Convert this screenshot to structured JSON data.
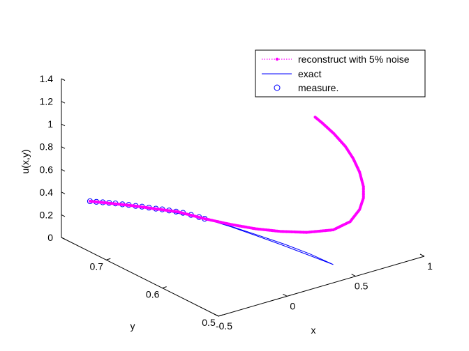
{
  "chart_data": {
    "type": "line",
    "projection": "3d",
    "xlabel": "x",
    "ylabel": "y",
    "zlabel": "u(x,y)",
    "xlim": [
      -0.5,
      1
    ],
    "ylim": [
      0.5,
      0.78
    ],
    "zlim": [
      0,
      1.4
    ],
    "x_ticks": [
      "-0.5",
      "0",
      "0.5",
      "1"
    ],
    "y_ticks": [
      "0.5",
      "0.6",
      "0.7"
    ],
    "z_ticks": [
      "0",
      "0.2",
      "0.4",
      "0.6",
      "0.8",
      "1",
      "1.2",
      "1.4"
    ],
    "grid": false,
    "legend_position": "top-right",
    "series": [
      {
        "name": "reconstruct with 5% noise",
        "style": "dotted-with-point-markers",
        "color": "#ff00ff",
        "points": [
          {
            "x": -0.5,
            "y": 0.729,
            "z": 0.446
          },
          {
            "x": -0.4,
            "y": 0.714,
            "z": 0.428
          },
          {
            "x": -0.3,
            "y": 0.7,
            "z": 0.407
          },
          {
            "x": -0.2,
            "y": 0.685,
            "z": 0.382
          },
          {
            "x": -0.1,
            "y": 0.67,
            "z": 0.358
          },
          {
            "x": 0.0,
            "y": 0.647,
            "z": 0.319
          },
          {
            "x": 0.1,
            "y": 0.625,
            "z": 0.288
          },
          {
            "x": 0.2,
            "y": 0.605,
            "z": 0.264
          },
          {
            "x": 0.3,
            "y": 0.585,
            "z": 0.255
          },
          {
            "x": 0.4,
            "y": 0.563,
            "z": 0.266
          },
          {
            "x": 0.5,
            "y": 0.54,
            "z": 0.31
          },
          {
            "x": 0.57,
            "y": 0.527,
            "z": 0.39
          },
          {
            "x": 0.61,
            "y": 0.52,
            "z": 0.5
          },
          {
            "x": 0.63,
            "y": 0.518,
            "z": 0.6
          },
          {
            "x": 0.63,
            "y": 0.518,
            "z": 0.7
          },
          {
            "x": 0.61,
            "y": 0.52,
            "z": 0.83
          },
          {
            "x": 0.58,
            "y": 0.524,
            "z": 0.95
          },
          {
            "x": 0.54,
            "y": 0.528,
            "z": 1.06
          },
          {
            "x": 0.48,
            "y": 0.534,
            "z": 1.18
          },
          {
            "x": 0.42,
            "y": 0.54,
            "z": 1.28
          },
          {
            "x": 0.38,
            "y": 0.545,
            "z": 1.342
          }
        ]
      },
      {
        "name": "exact",
        "style": "solid",
        "color": "#0000ff",
        "points": [
          {
            "x": -0.5,
            "y": 0.729,
            "z": 0.446
          },
          {
            "x": -0.2,
            "y": 0.685,
            "z": 0.382
          },
          {
            "x": 0.0,
            "y": 0.647,
            "z": 0.319
          },
          {
            "x": 0.1,
            "y": 0.625,
            "z": 0.268
          },
          {
            "x": 0.2,
            "y": 0.605,
            "z": 0.205
          },
          {
            "x": 0.3,
            "y": 0.585,
            "z": 0.14
          },
          {
            "x": 0.4,
            "y": 0.563,
            "z": 0.072
          },
          {
            "x": 0.5,
            "y": 0.54,
            "z": 0.004
          },
          {
            "x": 0.4,
            "y": 0.558,
            "z": 0.09
          },
          {
            "x": 0.3,
            "y": 0.578,
            "z": 0.16
          },
          {
            "x": 0.2,
            "y": 0.598,
            "z": 0.22
          },
          {
            "x": 0.1,
            "y": 0.622,
            "z": 0.275
          },
          {
            "x": 0.0,
            "y": 0.647,
            "z": 0.319
          }
        ]
      },
      {
        "name": "measure.",
        "style": "circle-markers",
        "color": "#0000ff",
        "points": [
          {
            "x": -0.5,
            "y": 0.729,
            "z": 0.446
          },
          {
            "x": -0.47,
            "y": 0.725,
            "z": 0.44
          },
          {
            "x": -0.44,
            "y": 0.721,
            "z": 0.435
          },
          {
            "x": -0.41,
            "y": 0.717,
            "z": 0.43
          },
          {
            "x": -0.38,
            "y": 0.713,
            "z": 0.424
          },
          {
            "x": -0.35,
            "y": 0.708,
            "z": 0.418
          },
          {
            "x": -0.32,
            "y": 0.704,
            "z": 0.412
          },
          {
            "x": -0.29,
            "y": 0.699,
            "z": 0.405
          },
          {
            "x": -0.26,
            "y": 0.695,
            "z": 0.398
          },
          {
            "x": -0.23,
            "y": 0.69,
            "z": 0.391
          },
          {
            "x": -0.2,
            "y": 0.685,
            "z": 0.384
          },
          {
            "x": -0.17,
            "y": 0.681,
            "z": 0.377
          },
          {
            "x": -0.14,
            "y": 0.676,
            "z": 0.369
          },
          {
            "x": -0.11,
            "y": 0.671,
            "z": 0.361
          },
          {
            "x": -0.08,
            "y": 0.666,
            "z": 0.352
          },
          {
            "x": -0.05,
            "y": 0.659,
            "z": 0.34
          },
          {
            "x": -0.02,
            "y": 0.652,
            "z": 0.328
          },
          {
            "x": 0.0,
            "y": 0.647,
            "z": 0.319
          }
        ]
      }
    ]
  }
}
